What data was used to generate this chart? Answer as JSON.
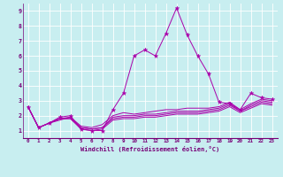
{
  "xlabel": "Windchill (Refroidissement éolien,°C)",
  "ylabel": "",
  "background_color": "#c8eef0",
  "grid_color": "#ffffff",
  "line_color": "#aa00aa",
  "xlim": [
    -0.5,
    23.5
  ],
  "ylim": [
    0.5,
    9.5
  ],
  "xticks": [
    0,
    1,
    2,
    3,
    4,
    5,
    6,
    7,
    8,
    9,
    10,
    11,
    12,
    13,
    14,
    15,
    16,
    17,
    18,
    19,
    20,
    21,
    22,
    23
  ],
  "yticks": [
    1,
    2,
    3,
    4,
    5,
    6,
    7,
    8,
    9
  ],
  "series": [
    [
      2.6,
      1.2,
      1.5,
      1.9,
      2.0,
      1.1,
      1.0,
      1.0,
      2.4,
      3.5,
      6.0,
      6.4,
      6.0,
      7.5,
      9.2,
      7.4,
      6.0,
      4.8,
      2.9,
      2.8,
      2.4,
      3.5,
      3.2,
      3.1
    ],
    [
      2.6,
      1.2,
      1.5,
      1.7,
      1.9,
      1.3,
      1.2,
      1.4,
      2.0,
      2.2,
      2.1,
      2.2,
      2.3,
      2.4,
      2.4,
      2.5,
      2.5,
      2.5,
      2.6,
      2.9,
      2.4,
      2.8,
      3.1,
      3.0
    ],
    [
      2.6,
      1.2,
      1.5,
      1.8,
      1.9,
      1.2,
      1.1,
      1.2,
      1.9,
      2.0,
      2.0,
      2.1,
      2.1,
      2.2,
      2.3,
      2.3,
      2.3,
      2.4,
      2.5,
      2.8,
      2.3,
      2.7,
      3.0,
      2.9
    ],
    [
      2.6,
      1.2,
      1.5,
      1.8,
      1.8,
      1.2,
      1.1,
      1.2,
      1.8,
      1.9,
      1.9,
      2.0,
      2.0,
      2.1,
      2.2,
      2.2,
      2.2,
      2.3,
      2.4,
      2.7,
      2.3,
      2.6,
      2.9,
      2.8
    ],
    [
      2.6,
      1.2,
      1.5,
      1.8,
      1.8,
      1.1,
      1.0,
      1.1,
      1.7,
      1.8,
      1.8,
      1.9,
      1.9,
      2.0,
      2.1,
      2.1,
      2.1,
      2.2,
      2.3,
      2.6,
      2.2,
      2.5,
      2.8,
      2.7
    ]
  ]
}
